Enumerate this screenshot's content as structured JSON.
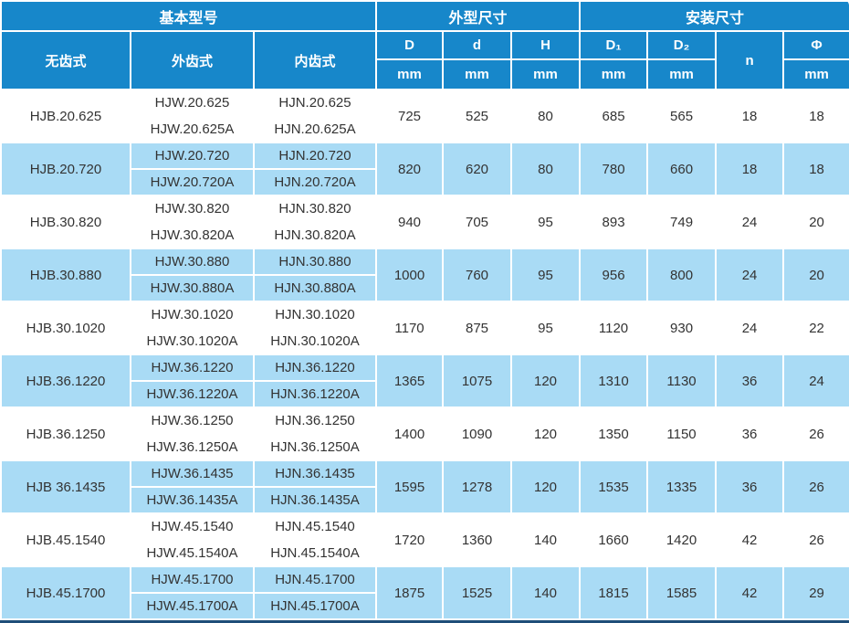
{
  "chart_data": {
    "type": "table",
    "header": {
      "groups": [
        {
          "label": "基本型号",
          "span": 3
        },
        {
          "label": "外型尺寸",
          "span": 3
        },
        {
          "label": "安装尺寸",
          "span": 4
        }
      ],
      "models": [
        "无齿式",
        "外齿式",
        "内齿式"
      ],
      "dims": [
        {
          "label": "D",
          "unit": "mm"
        },
        {
          "label": "d",
          "unit": "mm"
        },
        {
          "label": "H",
          "unit": "mm"
        },
        {
          "label": "D₁",
          "unit": "mm"
        },
        {
          "label": "D₂",
          "unit": "mm"
        },
        {
          "label": "n",
          "unit": ""
        },
        {
          "label": "Φ",
          "unit": "mm"
        }
      ]
    },
    "rows": [
      {
        "model_plain": "HJB.20.625",
        "model_external": [
          "HJW.20.625",
          "HJW.20.625A"
        ],
        "model_internal": [
          "HJN.20.625",
          "HJN.20.625A"
        ],
        "values": [
          725,
          525,
          80,
          685,
          565,
          18,
          18
        ]
      },
      {
        "model_plain": "HJB.20.720",
        "model_external": [
          "HJW.20.720",
          "HJW.20.720A"
        ],
        "model_internal": [
          "HJN.20.720",
          "HJN.20.720A"
        ],
        "values": [
          820,
          620,
          80,
          780,
          660,
          18,
          18
        ]
      },
      {
        "model_plain": "HJB.30.820",
        "model_external": [
          "HJW.30.820",
          "HJW.30.820A"
        ],
        "model_internal": [
          "HJN.30.820",
          "HJN.30.820A"
        ],
        "values": [
          940,
          705,
          95,
          893,
          749,
          24,
          20
        ]
      },
      {
        "model_plain": "HJB.30.880",
        "model_external": [
          "HJW.30.880",
          "HJW.30.880A"
        ],
        "model_internal": [
          "HJN.30.880",
          "HJN.30.880A"
        ],
        "values": [
          1000,
          760,
          95,
          956,
          800,
          24,
          20
        ]
      },
      {
        "model_plain": "HJB.30.1020",
        "model_external": [
          "HJW.30.1020",
          "HJW.30.1020A"
        ],
        "model_internal": [
          "HJN.30.1020",
          "HJN.30.1020A"
        ],
        "values": [
          1170,
          875,
          95,
          1120,
          930,
          24,
          22
        ]
      },
      {
        "model_plain": "HJB.36.1220",
        "model_external": [
          "HJW.36.1220",
          "HJW.36.1220A"
        ],
        "model_internal": [
          "HJN.36.1220",
          "HJN.36.1220A"
        ],
        "values": [
          1365,
          1075,
          120,
          1310,
          1130,
          36,
          24
        ]
      },
      {
        "model_plain": "HJB.36.1250",
        "model_external": [
          "HJW.36.1250",
          "HJW.36.1250A"
        ],
        "model_internal": [
          "HJN.36.1250",
          "HJN.36.1250A"
        ],
        "values": [
          1400,
          1090,
          120,
          1350,
          1150,
          36,
          26
        ]
      },
      {
        "model_plain": "HJB 36.1435",
        "model_external": [
          "HJW.36.1435",
          "HJW.36.1435A"
        ],
        "model_internal": [
          "HJN.36.1435",
          "HJN.36.1435A"
        ],
        "values": [
          1595,
          1278,
          120,
          1535,
          1335,
          36,
          26
        ]
      },
      {
        "model_plain": "HJB.45.1540",
        "model_external": [
          "HJW.45.1540",
          "HJW.45.1540A"
        ],
        "model_internal": [
          "HJN.45.1540",
          "HJN.45.1540A"
        ],
        "values": [
          1720,
          1360,
          140,
          1660,
          1420,
          42,
          26
        ]
      },
      {
        "model_plain": "HJB.45.1700",
        "model_external": [
          "HJW.45.1700",
          "HJW.45.1700A"
        ],
        "model_internal": [
          "HJN.45.1700",
          "HJN.45.1700A"
        ],
        "values": [
          1875,
          1525,
          140,
          1815,
          1585,
          42,
          29
        ]
      }
    ]
  },
  "colors": {
    "header_blue": "#1787ca",
    "row_alt_blue": "#a9dbf5",
    "border_white": "#ffffff",
    "bottom_bar_navy": "#1f4e79",
    "body_text": "#333333",
    "header_text": "#ffffff"
  }
}
